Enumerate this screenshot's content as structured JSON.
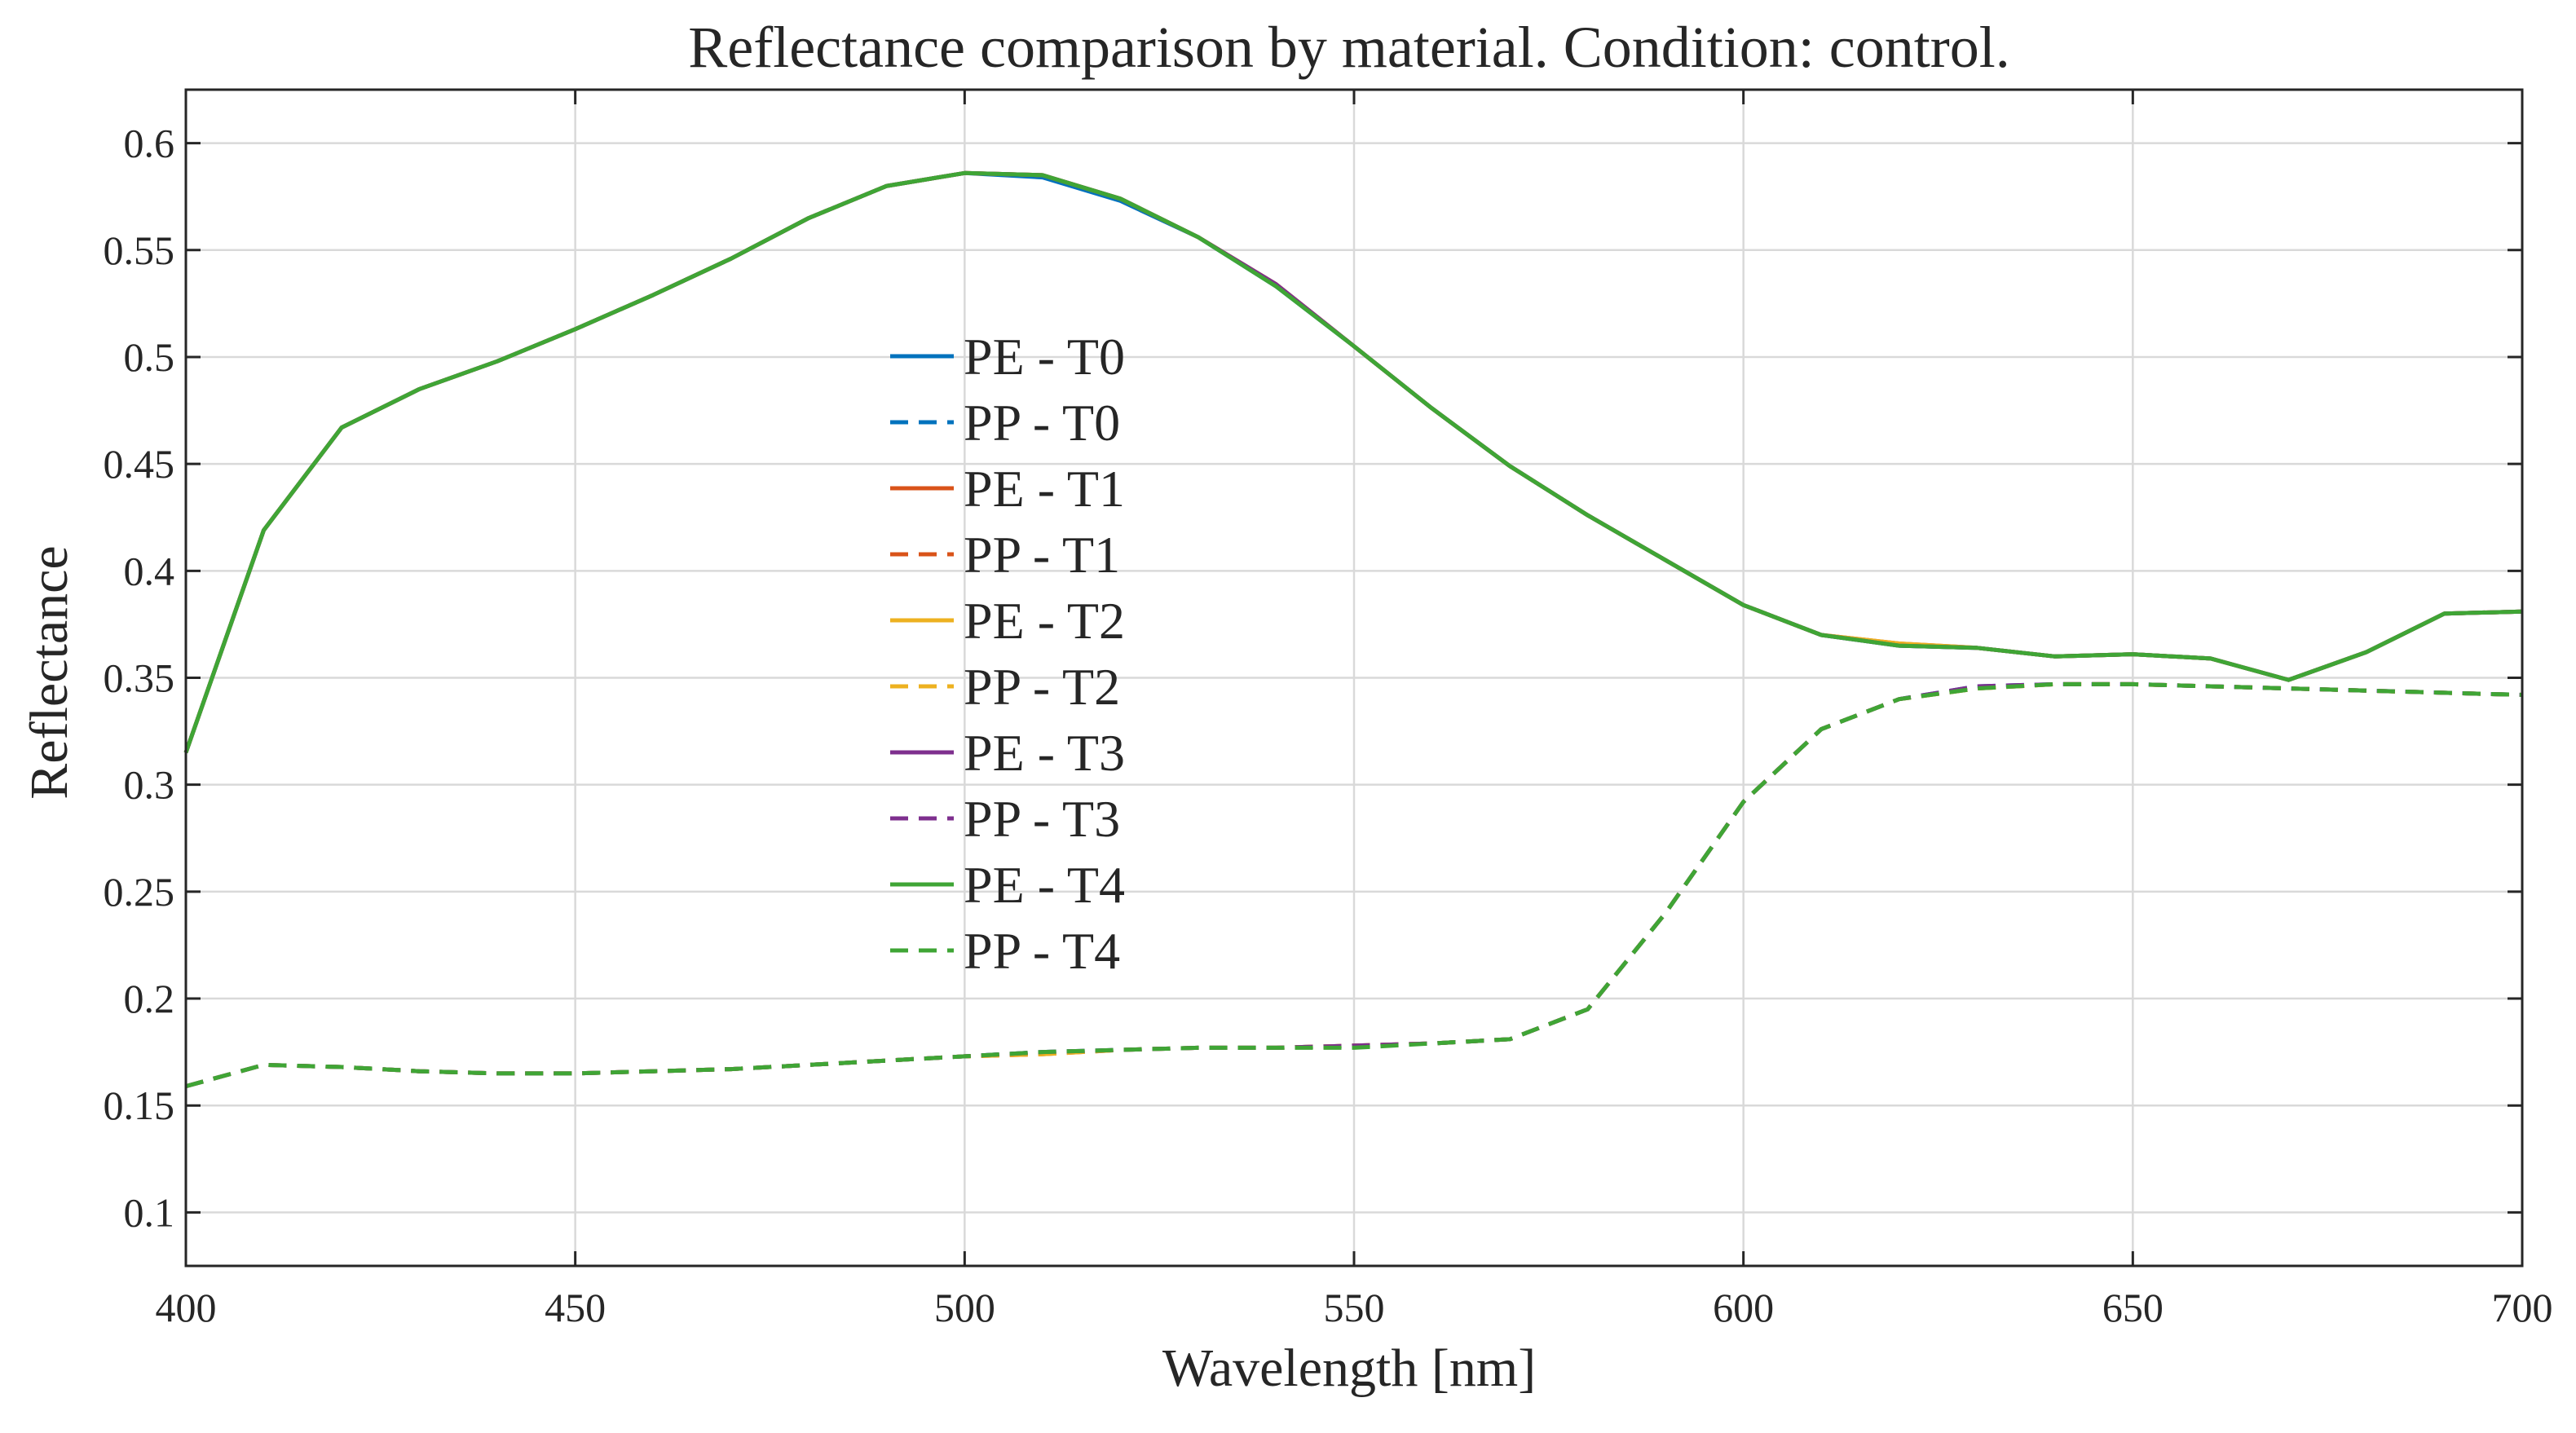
{
  "chart_data": {
    "type": "line",
    "title": "Reflectance comparison by material. Condition: control.",
    "xlabel": "Wavelength [nm]",
    "ylabel": "Reflectance",
    "xlim": [
      400,
      700
    ],
    "ylim": [
      0.075,
      0.625
    ],
    "xticks": [
      400,
      450,
      500,
      550,
      600,
      650,
      700
    ],
    "xtick_labels": [
      "400",
      "450",
      "500",
      "550",
      "600",
      "650",
      "700"
    ],
    "yticks": [
      0.1,
      0.15,
      0.2,
      0.25,
      0.3,
      0.35,
      0.4,
      0.45,
      0.5,
      0.55,
      0.6
    ],
    "ytick_labels": [
      "0.1",
      "0.15",
      "0.2",
      "0.25",
      "0.3",
      "0.35",
      "0.4",
      "0.45",
      "0.5",
      "0.55",
      "0.6"
    ],
    "grid": true,
    "legend_position": "center-left",
    "x": [
      400,
      410,
      420,
      430,
      440,
      450,
      460,
      470,
      480,
      490,
      500,
      510,
      520,
      530,
      540,
      550,
      560,
      570,
      580,
      590,
      600,
      610,
      620,
      630,
      640,
      650,
      660,
      670,
      680,
      690,
      700
    ],
    "series": [
      {
        "name": "PE - T0",
        "color": "#0072BD",
        "dash": "solid",
        "values": [
          0.315,
          0.419,
          0.467,
          0.485,
          0.498,
          0.513,
          0.529,
          0.546,
          0.565,
          0.58,
          0.586,
          0.584,
          0.573,
          0.556,
          0.533,
          0.505,
          0.476,
          0.449,
          0.426,
          0.405,
          0.384,
          0.37,
          0.365,
          0.364,
          0.36,
          0.361,
          0.359,
          0.349,
          0.362,
          0.38,
          0.381
        ]
      },
      {
        "name": "PP - T0",
        "color": "#0072BD",
        "dash": "dashed",
        "values": [
          0.159,
          0.169,
          0.168,
          0.166,
          0.165,
          0.165,
          0.166,
          0.167,
          0.169,
          0.171,
          0.173,
          0.175,
          0.176,
          0.177,
          0.177,
          0.178,
          0.179,
          0.181,
          0.195,
          0.24,
          0.292,
          0.326,
          0.34,
          0.346,
          0.347,
          0.347,
          0.346,
          0.345,
          0.344,
          0.343,
          0.342
        ]
      },
      {
        "name": "PE - T1",
        "color": "#D95319",
        "dash": "solid",
        "values": [
          0.315,
          0.419,
          0.467,
          0.485,
          0.498,
          0.513,
          0.529,
          0.546,
          0.565,
          0.58,
          0.586,
          0.585,
          0.574,
          0.556,
          0.534,
          0.505,
          0.476,
          0.449,
          0.426,
          0.405,
          0.384,
          0.37,
          0.366,
          0.364,
          0.36,
          0.361,
          0.359,
          0.349,
          0.362,
          0.38,
          0.381
        ]
      },
      {
        "name": "PP - T1",
        "color": "#D95319",
        "dash": "dashed",
        "values": [
          0.159,
          0.169,
          0.168,
          0.166,
          0.165,
          0.165,
          0.166,
          0.167,
          0.169,
          0.171,
          0.173,
          0.174,
          0.176,
          0.177,
          0.177,
          0.178,
          0.179,
          0.181,
          0.195,
          0.24,
          0.292,
          0.326,
          0.34,
          0.345,
          0.347,
          0.347,
          0.346,
          0.345,
          0.344,
          0.343,
          0.342
        ]
      },
      {
        "name": "PE - T2",
        "color": "#EDB120",
        "dash": "solid",
        "values": [
          0.315,
          0.419,
          0.467,
          0.485,
          0.498,
          0.513,
          0.529,
          0.546,
          0.565,
          0.58,
          0.586,
          0.585,
          0.574,
          0.556,
          0.534,
          0.505,
          0.476,
          0.449,
          0.426,
          0.405,
          0.384,
          0.37,
          0.366,
          0.364,
          0.36,
          0.361,
          0.359,
          0.349,
          0.362,
          0.38,
          0.381
        ]
      },
      {
        "name": "PP - T2",
        "color": "#EDB120",
        "dash": "dashed",
        "values": [
          0.159,
          0.169,
          0.168,
          0.166,
          0.165,
          0.165,
          0.166,
          0.167,
          0.169,
          0.171,
          0.173,
          0.174,
          0.176,
          0.177,
          0.177,
          0.178,
          0.179,
          0.181,
          0.195,
          0.24,
          0.292,
          0.326,
          0.34,
          0.345,
          0.347,
          0.347,
          0.346,
          0.345,
          0.344,
          0.343,
          0.342
        ]
      },
      {
        "name": "PE - T3",
        "color": "#7E2F8E",
        "dash": "solid",
        "values": [
          0.315,
          0.419,
          0.467,
          0.485,
          0.498,
          0.513,
          0.529,
          0.546,
          0.565,
          0.58,
          0.586,
          0.585,
          0.574,
          0.556,
          0.534,
          0.505,
          0.476,
          0.449,
          0.426,
          0.405,
          0.384,
          0.37,
          0.365,
          0.364,
          0.36,
          0.361,
          0.359,
          0.349,
          0.362,
          0.38,
          0.381
        ]
      },
      {
        "name": "PP - T3",
        "color": "#7E2F8E",
        "dash": "dashed",
        "values": [
          0.159,
          0.169,
          0.168,
          0.166,
          0.165,
          0.165,
          0.166,
          0.167,
          0.169,
          0.171,
          0.173,
          0.175,
          0.176,
          0.177,
          0.177,
          0.178,
          0.179,
          0.181,
          0.195,
          0.24,
          0.292,
          0.326,
          0.34,
          0.346,
          0.347,
          0.347,
          0.346,
          0.345,
          0.344,
          0.343,
          0.342
        ]
      },
      {
        "name": "PE - T4",
        "color": "#3FA535",
        "dash": "solid",
        "values": [
          0.315,
          0.419,
          0.467,
          0.485,
          0.498,
          0.513,
          0.529,
          0.546,
          0.565,
          0.58,
          0.586,
          0.585,
          0.574,
          0.556,
          0.533,
          0.505,
          0.476,
          0.449,
          0.426,
          0.405,
          0.384,
          0.37,
          0.365,
          0.364,
          0.36,
          0.361,
          0.359,
          0.349,
          0.362,
          0.38,
          0.381
        ]
      },
      {
        "name": "PP - T4",
        "color": "#3FA535",
        "dash": "dashed",
        "values": [
          0.159,
          0.169,
          0.168,
          0.166,
          0.165,
          0.165,
          0.166,
          0.167,
          0.169,
          0.171,
          0.173,
          0.175,
          0.176,
          0.177,
          0.177,
          0.177,
          0.179,
          0.181,
          0.195,
          0.24,
          0.292,
          0.326,
          0.34,
          0.345,
          0.347,
          0.347,
          0.346,
          0.345,
          0.344,
          0.343,
          0.342
        ]
      }
    ]
  }
}
